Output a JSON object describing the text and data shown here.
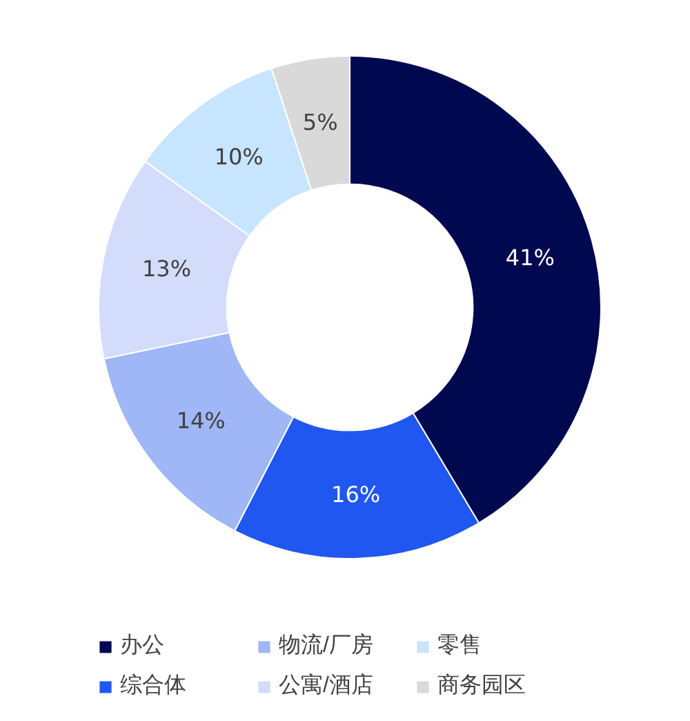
{
  "chart_data": {
    "type": "donut",
    "categories": [
      "办公",
      "综合体",
      "物流/厂房",
      "公寓/酒店",
      "零售",
      "商务园区"
    ],
    "values": [
      41,
      16,
      14,
      13,
      10,
      5
    ],
    "value_labels": [
      "41%",
      "16%",
      "14%",
      "13%",
      "10%",
      "5%"
    ],
    "colors": [
      "#000850",
      "#1f57f0",
      "#9fb6f7",
      "#d3dcfb",
      "#c7e5ff",
      "#d9d9d9"
    ],
    "legend": "bottom"
  }
}
